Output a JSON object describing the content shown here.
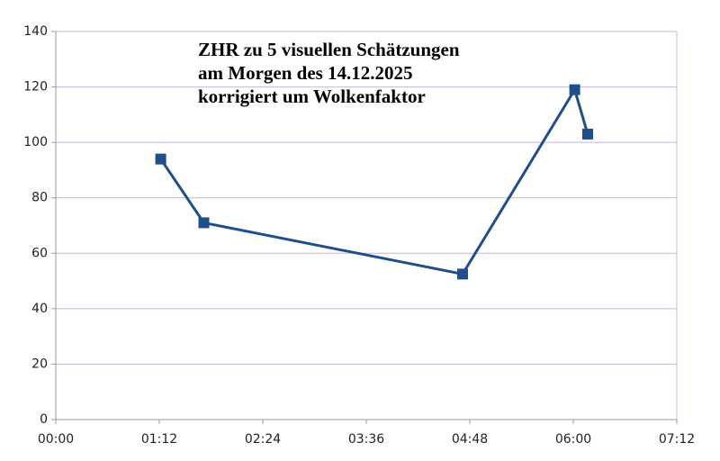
{
  "chart_data": {
    "type": "line",
    "title": [
      "ZHR zu 5 visuellen Schätzungen",
      "am Morgen des 14.12.2025",
      "korrigiert um Wolkenfaktor"
    ],
    "x": [
      73,
      103,
      283,
      361,
      370
    ],
    "series": [
      {
        "color": "#1f4e8c",
        "values": [
          94,
          71,
          52.5,
          119,
          103
        ]
      }
    ],
    "xlim": [
      0,
      432
    ],
    "xticks": [
      {
        "value": 0,
        "label": "00:00"
      },
      {
        "value": 72,
        "label": "01:12"
      },
      {
        "value": 144,
        "label": "02:24"
      },
      {
        "value": 216,
        "label": "03:36"
      },
      {
        "value": 288,
        "label": "04:48"
      },
      {
        "value": 360,
        "label": "06:00"
      },
      {
        "value": 432,
        "label": "07:12"
      }
    ],
    "ylim": [
      0,
      140
    ],
    "yticks": [
      0,
      20,
      40,
      60,
      80,
      100,
      120,
      140
    ],
    "grid": true
  }
}
